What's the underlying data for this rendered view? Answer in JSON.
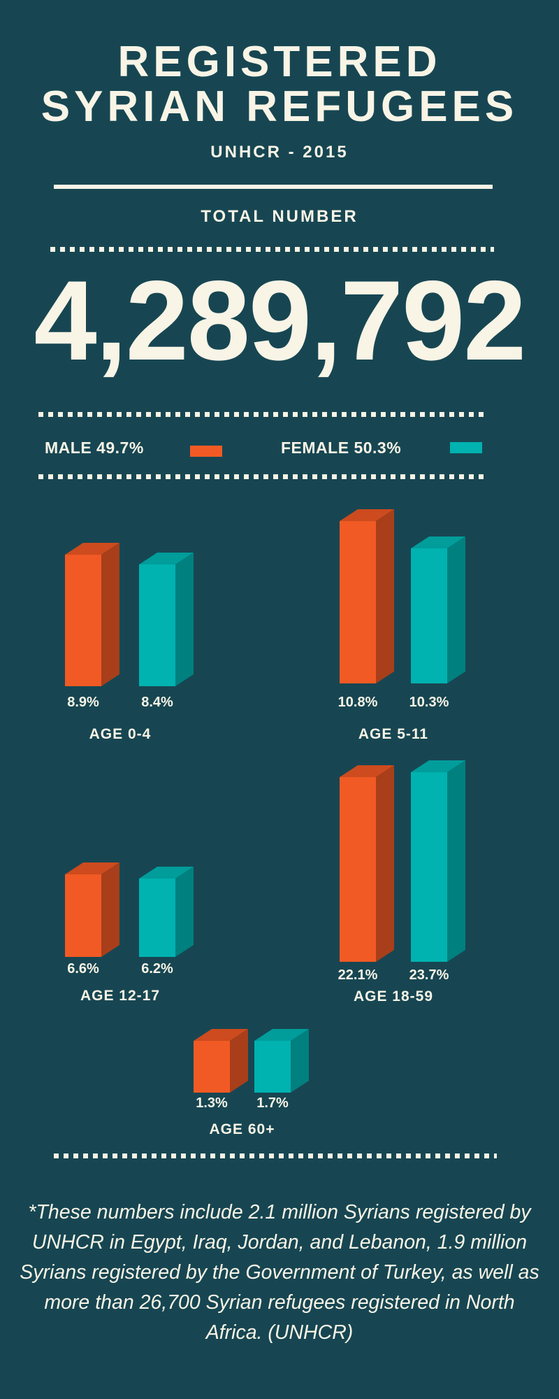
{
  "header": {
    "title_line1": "REGISTERED",
    "title_line2": "SYRIAN REFUGEES",
    "subtitle": "UNHCR - 2015",
    "total_label": "TOTAL NUMBER",
    "total_value": "4,289,792"
  },
  "legend": {
    "male_label": "MALE 49.7%",
    "female_label": "FEMALE 50.3%",
    "male_color": "#f15a24",
    "female_color": "#00b2b0"
  },
  "chart_data": {
    "type": "bar",
    "style": "3d grouped bars, no axes, no grid",
    "categories": [
      "AGE 0-4",
      "AGE 5-11",
      "AGE 12-17",
      "AGE 18-59",
      "AGE 60+"
    ],
    "series": [
      {
        "name": "MALE",
        "color": "#f15a24",
        "values": [
          8.9,
          10.8,
          6.6,
          22.1,
          1.3
        ]
      },
      {
        "name": "FEMALE",
        "color": "#00b2b0",
        "values": [
          8.4,
          10.3,
          6.2,
          23.7,
          1.7
        ]
      }
    ],
    "unit": "%"
  },
  "footnote": "*These numbers include 2.1 million Syrians registered by UNHCR in Egypt, Iraq, Jordan, and Lebanon, 1.9 million Syrians registered by the Government of Turkey, as well as more than 26,700 Syrian refugees registered in North Africa. (UNHCR)"
}
